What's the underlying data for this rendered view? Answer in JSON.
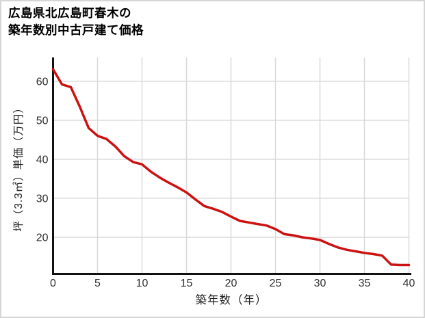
{
  "header": {
    "title_line1": "広島県北広島町春木の",
    "title_line2": "築年数別中古戸建て価格"
  },
  "chart_data": {
    "type": "line",
    "title": "広島県北広島町春木の築年数別中古戸建て価格",
    "xlabel": "築年数（年）",
    "ylabel": "坪（3.3㎡）単価（万円）",
    "x": [
      0,
      1,
      2,
      3,
      4,
      5,
      6,
      7,
      8,
      9,
      10,
      11,
      12,
      13,
      14,
      15,
      16,
      17,
      18,
      19,
      20,
      21,
      22,
      23,
      24,
      25,
      26,
      27,
      28,
      29,
      30,
      31,
      32,
      33,
      34,
      35,
      36,
      37,
      38,
      39,
      40
    ],
    "y": [
      63.1,
      59.2,
      58.5,
      53.5,
      48.0,
      46.0,
      45.2,
      43.3,
      40.8,
      39.3,
      38.7,
      36.8,
      35.3,
      34.0,
      32.8,
      31.5,
      29.7,
      28.0,
      27.3,
      26.5,
      25.3,
      24.2,
      23.8,
      23.4,
      23.0,
      22.1,
      20.8,
      20.5,
      20.0,
      19.7,
      19.3,
      18.3,
      17.4,
      16.8,
      16.4,
      16.0,
      15.7,
      15.3,
      13.0,
      12.9,
      12.9
    ],
    "x_ticks": [
      0,
      5,
      10,
      15,
      20,
      25,
      30,
      35,
      40
    ],
    "y_ticks": [
      20,
      30,
      40,
      50,
      60
    ],
    "xlim": [
      0,
      40
    ],
    "ylim": [
      10.7,
      66.1
    ],
    "grid": true,
    "legend_position": "none",
    "line_color": "#cc1111"
  },
  "colors": {
    "line": "#cc1111",
    "grid": "#d9d9d9",
    "axis": "#111111",
    "tick_label": "#2e2e2e",
    "frame_border": "#d5d5d5",
    "background": "#ffffff"
  }
}
